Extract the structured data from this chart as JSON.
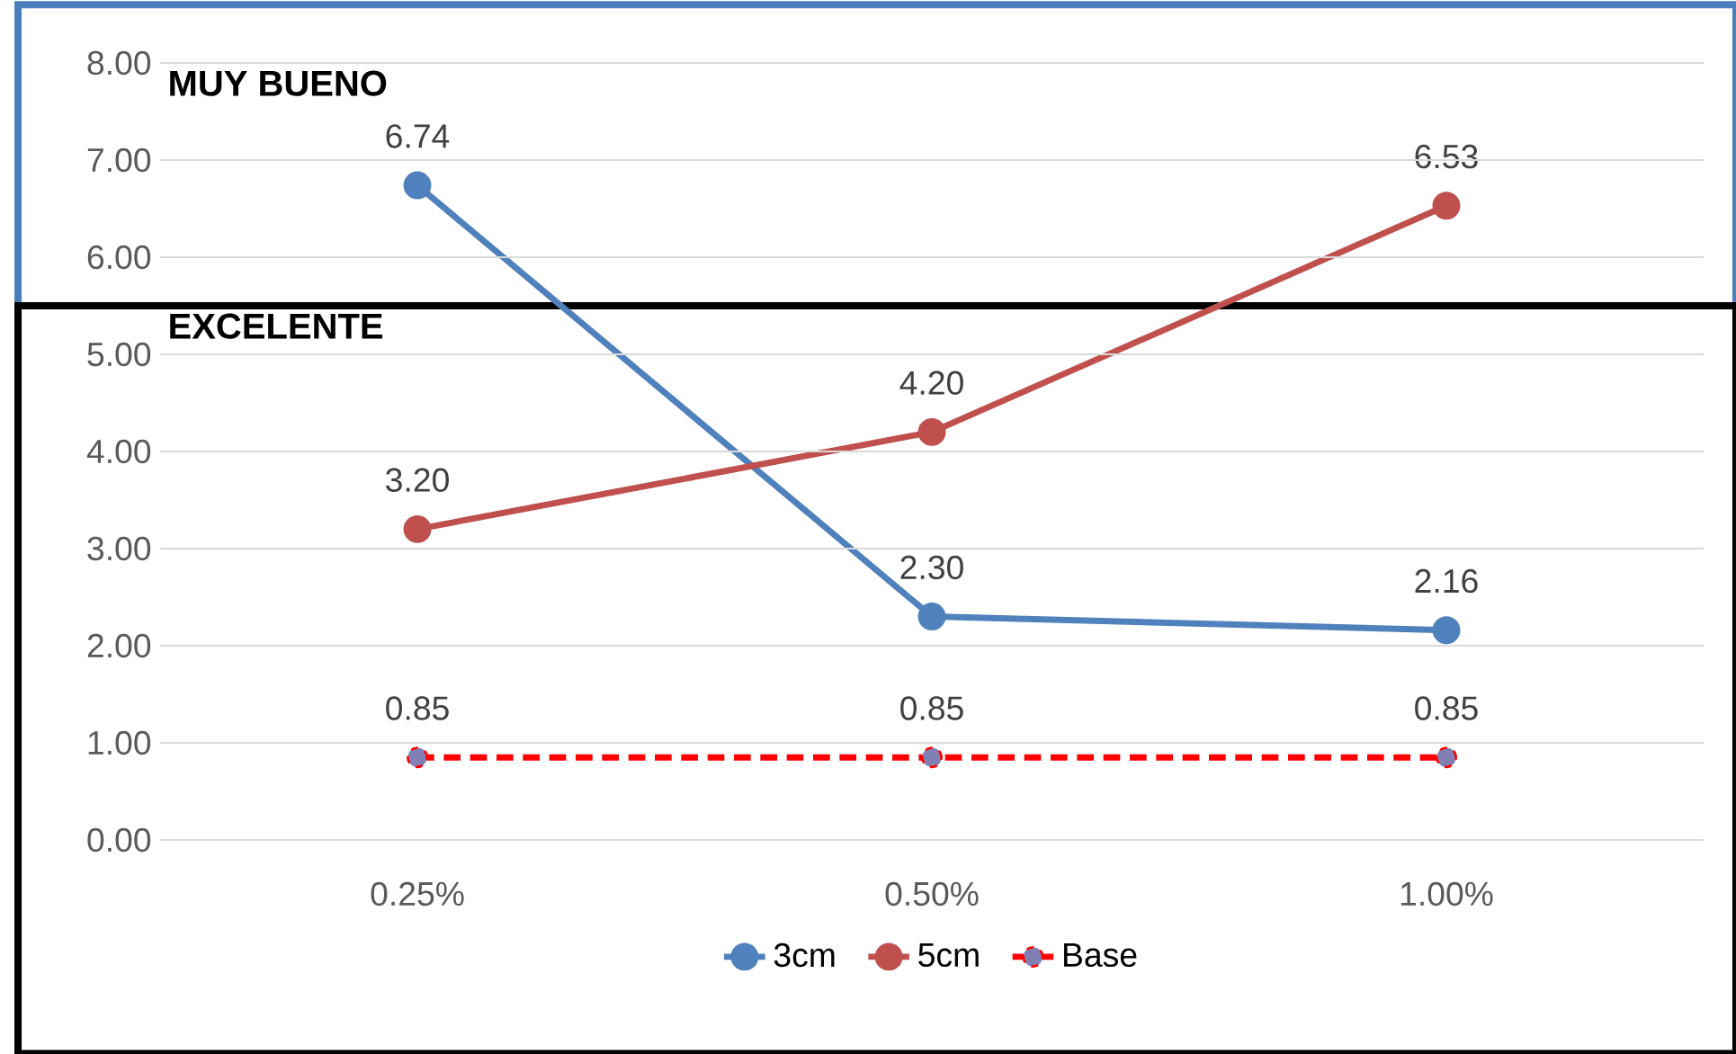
{
  "chart_data": {
    "type": "line",
    "categories": [
      "0.25%",
      "0.50%",
      "1.00%"
    ],
    "series": [
      {
        "name": "3cm",
        "color": "#4f81bd",
        "values": [
          6.74,
          2.3,
          2.16
        ],
        "value_labels": [
          "6.74",
          "2.30",
          "2.16"
        ]
      },
      {
        "name": "5cm",
        "color": "#c0504d",
        "values": [
          3.2,
          4.2,
          6.53
        ],
        "value_labels": [
          "3.20",
          "4.20",
          "6.53"
        ]
      },
      {
        "name": "Base",
        "color": "#ff0000",
        "values": [
          0.85,
          0.85,
          0.85
        ],
        "value_labels": [
          "0.85",
          "0.85",
          "0.85"
        ],
        "line_style": "dashed"
      }
    ],
    "ylim": [
      0,
      8
    ],
    "yticks": [
      {
        "value": 0,
        "label": "0.00"
      },
      {
        "value": 1,
        "label": "1.00"
      },
      {
        "value": 2,
        "label": "2.00"
      },
      {
        "value": 3,
        "label": "3.00"
      },
      {
        "value": 4,
        "label": "4.00"
      },
      {
        "value": 5,
        "label": "5.00"
      },
      {
        "value": 6,
        "label": "6.00"
      },
      {
        "value": 7,
        "label": "7.00"
      },
      {
        "value": 8,
        "label": "8.00"
      }
    ],
    "annotations": [
      "MUY BUENO",
      "EXCELENTE"
    ],
    "grid": "y",
    "legend": "bottom",
    "marker": "circle"
  }
}
